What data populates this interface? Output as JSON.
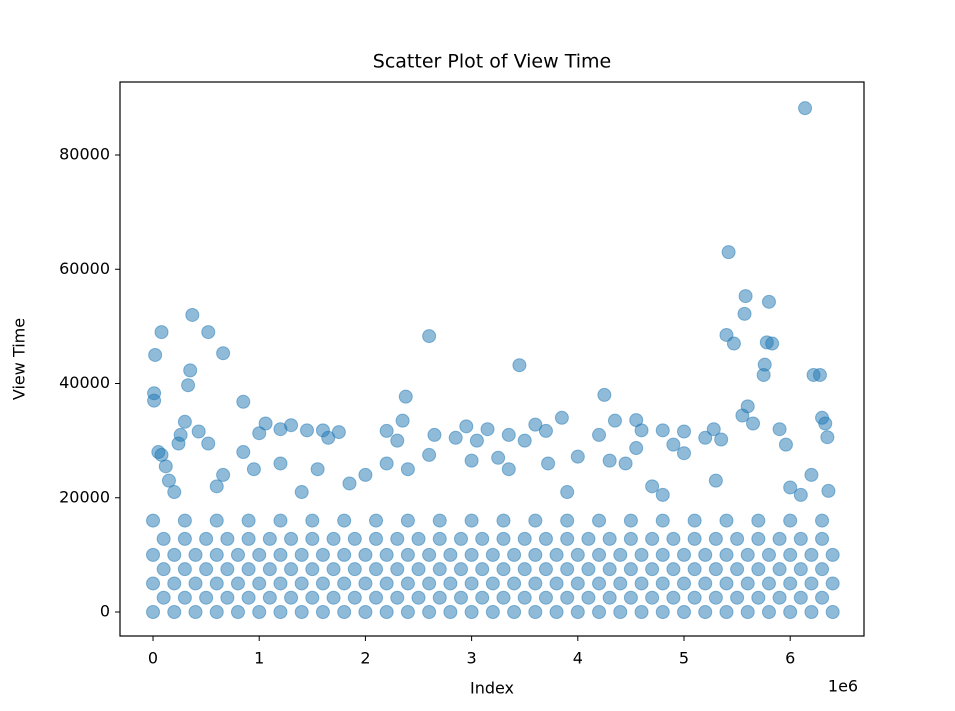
{
  "chart_data": {
    "type": "scatter",
    "title": "Scatter Plot of View Time",
    "x_label": "Index",
    "y_label": "View Time",
    "x_offset_label": "1e6",
    "color": "#1f77b4",
    "alpha": 0.5,
    "xlim": [
      -311000,
      6695000
    ],
    "ylim": [
      -4200,
      92780
    ],
    "xticks": [
      0,
      {
        "value": 1000000,
        "label": "1"
      },
      {
        "value": 2000000,
        "label": "2"
      },
      {
        "value": 3000000,
        "label": "3"
      },
      {
        "value": 4000000,
        "label": "4"
      },
      {
        "value": 5000000,
        "label": "5"
      },
      {
        "value": 6000000,
        "label": "6"
      }
    ],
    "yticks": [
      0,
      20000,
      40000,
      60000,
      80000
    ],
    "x": [
      0,
      200000,
      400000,
      600000,
      800000,
      1000000,
      1200000,
      1400000,
      1600000,
      1800000,
      2000000,
      2200000,
      2400000,
      2600000,
      2800000,
      3000000,
      3200000,
      3400000,
      3600000,
      3800000,
      4000000,
      4200000,
      4400000,
      4600000,
      4800000,
      5000000,
      5200000,
      5400000,
      5600000,
      5800000,
      6000000,
      6200000,
      6400000,
      100000,
      300000,
      500000,
      700000,
      900000,
      1100000,
      1300000,
      1500000,
      1700000,
      1900000,
      2100000,
      2300000,
      2500000,
      2700000,
      2900000,
      3100000,
      3300000,
      3500000,
      3700000,
      3900000,
      4100000,
      4300000,
      4500000,
      4700000,
      4900000,
      5100000,
      5300000,
      5500000,
      5700000,
      5900000,
      6100000,
      6300000,
      0,
      200000,
      400000,
      600000,
      800000,
      1000000,
      1200000,
      1400000,
      1600000,
      1800000,
      2000000,
      2200000,
      2400000,
      2600000,
      2800000,
      3000000,
      3200000,
      3400000,
      3600000,
      3800000,
      4000000,
      4200000,
      4400000,
      4600000,
      4800000,
      5000000,
      5200000,
      5400000,
      5600000,
      5800000,
      6000000,
      6200000,
      6400000,
      100000,
      300000,
      500000,
      700000,
      900000,
      1100000,
      1300000,
      1500000,
      1700000,
      1900000,
      2100000,
      2300000,
      2500000,
      2700000,
      2900000,
      3100000,
      3300000,
      3500000,
      3700000,
      3900000,
      4100000,
      4300000,
      4500000,
      4700000,
      4900000,
      5100000,
      5300000,
      5500000,
      5700000,
      5900000,
      6100000,
      6300000,
      0,
      200000,
      400000,
      600000,
      800000,
      1000000,
      1200000,
      1400000,
      1600000,
      1800000,
      2000000,
      2200000,
      2400000,
      2600000,
      2800000,
      3000000,
      3200000,
      3400000,
      3600000,
      3800000,
      4000000,
      4200000,
      4400000,
      4600000,
      4800000,
      5000000,
      5200000,
      5400000,
      5600000,
      5800000,
      6000000,
      6200000,
      6400000,
      100000,
      300000,
      500000,
      700000,
      900000,
      1100000,
      1300000,
      1500000,
      1700000,
      1900000,
      2100000,
      2300000,
      2500000,
      2700000,
      2900000,
      3100000,
      3300000,
      3500000,
      3700000,
      3900000,
      4100000,
      4300000,
      4500000,
      4700000,
      4900000,
      5100000,
      5300000,
      5500000,
      5700000,
      5900000,
      6100000,
      6300000,
      0,
      300000,
      600000,
      900000,
      1200000,
      1500000,
      1800000,
      2100000,
      2400000,
      2700000,
      3000000,
      3300000,
      3600000,
      3900000,
      4200000,
      4500000,
      4800000,
      5100000,
      5400000,
      5700000,
      6000000,
      6300000,
      10000,
      10000,
      20000,
      50000,
      80000,
      80000,
      120000,
      150000,
      200000,
      240000,
      260000,
      300000,
      330000,
      350000,
      370000,
      430000,
      520000,
      520000,
      660000,
      660000,
      850000,
      850000,
      950000,
      1000000,
      1060000,
      1200000,
      1200000,
      1300000,
      1450000,
      1550000,
      1600000,
      1650000,
      1750000,
      1850000,
      2000000,
      2200000,
      2200000,
      2300000,
      2350000,
      2380000,
      2400000,
      2600000,
      2600000,
      2650000,
      2850000,
      2950000,
      3000000,
      3050000,
      3150000,
      3250000,
      3350000,
      3350000,
      3450000,
      3500000,
      3600000,
      3700000,
      3720000,
      3850000,
      4000000,
      4200000,
      4250000,
      4300000,
      4350000,
      4450000,
      4550000,
      4550000,
      4600000,
      4700000,
      4800000,
      4900000,
      5000000,
      5000000,
      5200000,
      5280000,
      5350000,
      5400000,
      5420000,
      5470000,
      5550000,
      5570000,
      5580000,
      5600000,
      5650000,
      5750000,
      5760000,
      5780000,
      5800000,
      5830000,
      5900000,
      5960000,
      6000000,
      6140000,
      6220000,
      6280000,
      6300000,
      6330000,
      6350000,
      6200000,
      6360000,
      6100000,
      5300000,
      4800000,
      3900000,
      1400000,
      600000
    ],
    "y": [
      0,
      0,
      0,
      0,
      0,
      0,
      0,
      0,
      0,
      0,
      0,
      0,
      0,
      0,
      0,
      0,
      0,
      0,
      0,
      0,
      0,
      0,
      0,
      0,
      0,
      0,
      0,
      0,
      0,
      0,
      0,
      0,
      0,
      2500,
      2500,
      2500,
      2500,
      2500,
      2500,
      2500,
      2500,
      2500,
      2500,
      2500,
      2500,
      2500,
      2500,
      2500,
      2500,
      2500,
      2500,
      2500,
      2500,
      2500,
      2500,
      2500,
      2500,
      2500,
      2500,
      2500,
      2500,
      2500,
      2500,
      2500,
      2500,
      5000,
      5000,
      5000,
      5000,
      5000,
      5000,
      5000,
      5000,
      5000,
      5000,
      5000,
      5000,
      5000,
      5000,
      5000,
      5000,
      5000,
      5000,
      5000,
      5000,
      5000,
      5000,
      5000,
      5000,
      5000,
      5000,
      5000,
      5000,
      5000,
      5000,
      5000,
      5000,
      5000,
      7500,
      7500,
      7500,
      7500,
      7500,
      7500,
      7500,
      7500,
      7500,
      7500,
      7500,
      7500,
      7500,
      7500,
      7500,
      7500,
      7500,
      7500,
      7500,
      7500,
      7500,
      7500,
      7500,
      7500,
      7500,
      7500,
      7500,
      7500,
      7500,
      7500,
      7500,
      7500,
      10000,
      10000,
      10000,
      10000,
      10000,
      10000,
      10000,
      10000,
      10000,
      10000,
      10000,
      10000,
      10000,
      10000,
      10000,
      10000,
      10000,
      10000,
      10000,
      10000,
      10000,
      10000,
      10000,
      10000,
      10000,
      10000,
      10000,
      10000,
      10000,
      10000,
      10000,
      10000,
      10000,
      12800,
      12800,
      12800,
      12800,
      12800,
      12800,
      12800,
      12800,
      12800,
      12800,
      12800,
      12800,
      12800,
      12800,
      12800,
      12800,
      12800,
      12800,
      12800,
      12800,
      12800,
      12800,
      12800,
      12800,
      12800,
      12800,
      12800,
      12800,
      12800,
      12800,
      12800,
      12800,
      16000,
      16000,
      16000,
      16000,
      16000,
      16000,
      16000,
      16000,
      16000,
      16000,
      16000,
      16000,
      16000,
      16000,
      16000,
      16000,
      16000,
      16000,
      16000,
      16000,
      16000,
      16000,
      37000,
      38300,
      45000,
      28000,
      49000,
      27500,
      25500,
      23000,
      21000,
      29500,
      31000,
      33300,
      39700,
      42300,
      52000,
      31600,
      49000,
      29500,
      45300,
      24000,
      36800,
      28000,
      25000,
      31300,
      33000,
      26000,
      32000,
      32700,
      31800,
      25000,
      31800,
      30500,
      31500,
      22500,
      24000,
      26000,
      31700,
      30000,
      33500,
      37700,
      25000,
      48300,
      27500,
      31000,
      30500,
      32500,
      26500,
      30000,
      32000,
      27000,
      25000,
      31000,
      43200,
      30000,
      32800,
      31700,
      26000,
      34000,
      27200,
      31000,
      38000,
      26500,
      33500,
      26000,
      33600,
      28700,
      31800,
      22000,
      31800,
      29300,
      27800,
      31600,
      30500,
      32000,
      30200,
      48500,
      63000,
      47000,
      34400,
      52200,
      55300,
      36000,
      33000,
      41500,
      43300,
      47200,
      54300,
      47000,
      32000,
      29300,
      21800,
      88200,
      41500,
      41500,
      34000,
      33000,
      30600,
      24000,
      21200,
      20500,
      23000,
      20500,
      21000,
      21000,
      22000
    ]
  }
}
